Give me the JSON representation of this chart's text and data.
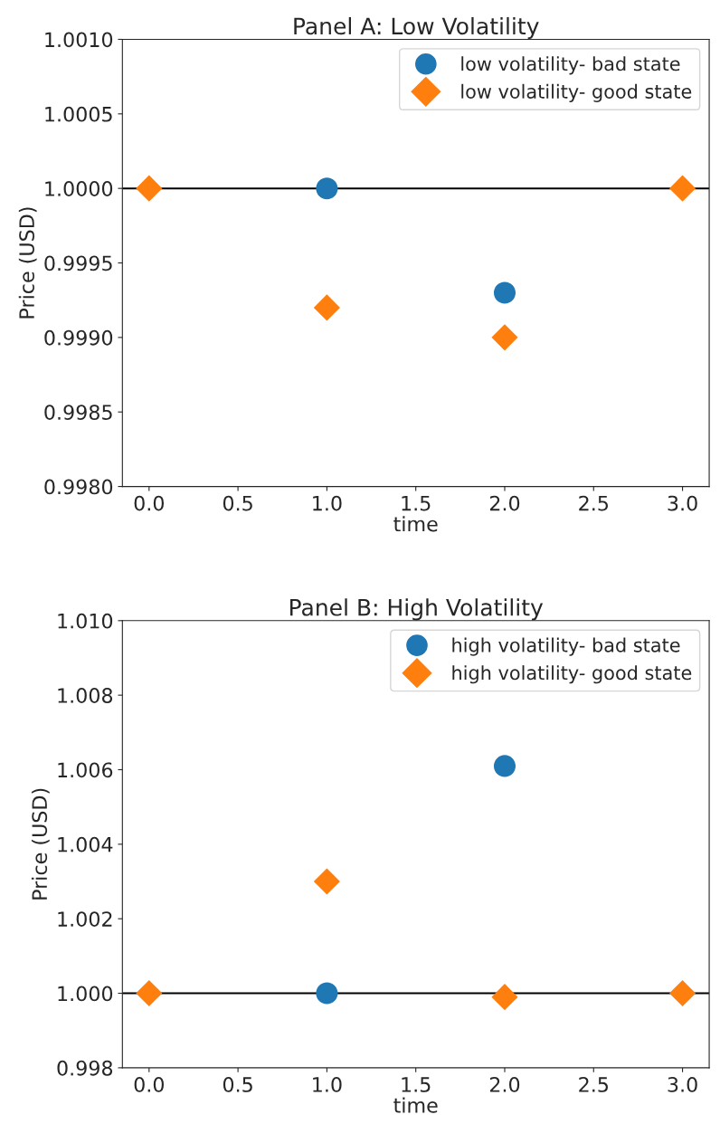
{
  "chart_data": [
    {
      "type": "scatter",
      "title": "Panel A: Low Volatility",
      "xlabel": "time",
      "ylabel": "Price (USD)",
      "x": [
        0,
        1,
        2,
        3
      ],
      "series": [
        {
          "name": "low volatility- bad state",
          "color": "#1f77b4",
          "marker": "circle",
          "values": [
            null,
            1.0,
            0.9993,
            null
          ]
        },
        {
          "name": "low volatility- good state",
          "color": "#ff7f0e",
          "marker": "diamond",
          "values": [
            1.0,
            0.9992,
            0.999,
            1.0
          ]
        }
      ],
      "xlim": [
        -0.15,
        3.15
      ],
      "xticks": [
        {
          "value": 0,
          "label": "0.0"
        },
        0.5,
        {
          "value": 1,
          "label": "1.0"
        },
        1.5,
        {
          "value": 2,
          "label": "2.0"
        },
        2.5,
        {
          "value": 3,
          "label": "3.0"
        }
      ],
      "ylim": [
        0.998,
        1.001
      ],
      "yticks": [
        {
          "value": 0.998,
          "label": "0.9980"
        },
        0.9985,
        {
          "value": 0.999,
          "label": "0.9990"
        },
        0.9995,
        {
          "value": 1.0,
          "label": "1.0000"
        },
        1.0005,
        {
          "value": 1.001,
          "label": "1.0010"
        }
      ],
      "ref_lines": [
        {
          "axis": "y",
          "value": 1.0,
          "color": "#000000"
        }
      ],
      "legend": "top right",
      "grid": false
    },
    {
      "type": "scatter",
      "title": "Panel B: High Volatility",
      "xlabel": "time",
      "ylabel": "Price (USD)",
      "x": [
        0,
        1,
        2,
        3
      ],
      "series": [
        {
          "name": "high volatility- bad state",
          "color": "#1f77b4",
          "marker": "circle",
          "values": [
            null,
            1.0,
            1.0061,
            null
          ]
        },
        {
          "name": "high volatility- good state",
          "color": "#ff7f0e",
          "marker": "diamond",
          "values": [
            1.0,
            1.003,
            0.9999,
            1.0
          ]
        }
      ],
      "xlim": [
        -0.15,
        3.15
      ],
      "xticks": [
        {
          "value": 0,
          "label": "0.0"
        },
        0.5,
        {
          "value": 1,
          "label": "1.0"
        },
        1.5,
        {
          "value": 2,
          "label": "2.0"
        },
        2.5,
        {
          "value": 3,
          "label": "3.0"
        }
      ],
      "ylim": [
        0.998,
        1.01
      ],
      "yticks": [
        0.998,
        {
          "value": 1.0,
          "label": "1.000"
        },
        1.002,
        1.004,
        1.006,
        1.008,
        {
          "value": 1.01,
          "label": "1.010"
        }
      ],
      "ref_lines": [
        {
          "axis": "y",
          "value": 1.0,
          "color": "#000000"
        }
      ],
      "legend": "top right",
      "grid": false
    }
  ]
}
